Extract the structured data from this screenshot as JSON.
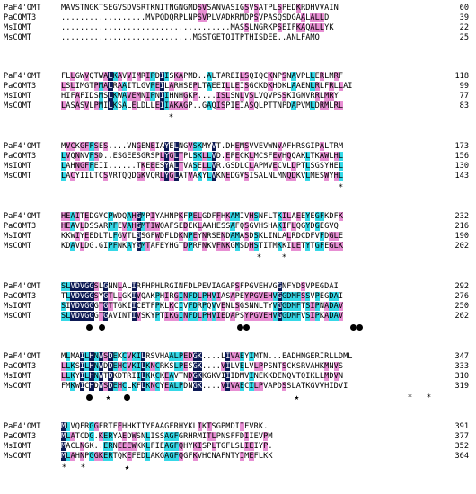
{
  "alignment": {
    "blocks": [
      {
        "rows": [
          {
            "name": "PaF4'OMT",
            "seq": "MAVSTNGKTSEGVSDVSRTKNITNGNGMDSVSANVASIGSVSATPLSPEDKRDHVVAIN",
            "end": "60"
          },
          {
            "name": "PaCOMT3",
            "seq": "..................MVPQDQRPLNPSVPLVADKRMDPSVPASQSDGAALALLD",
            "end": "39"
          },
          {
            "name": "MsIOMT",
            "seq": "....................................MASSLNGRKPSEIFKAQALLYK",
            "end": "22"
          },
          {
            "name": "MsCOMT",
            "seq": "............................MGSTGETQITPTHISDEE..ANLFAMQ",
            "end": "25"
          }
        ],
        "marks": []
      },
      {
        "rows": [
          {
            "name": "PaF4'OMT",
            "seq": "FLLGWVQTWALKAVVIMRIPDIISKAPMD..ALTAREILSQIQCKNPSNAVPLLERLMRF",
            "end": "118"
          },
          {
            "name": "PaCOMT3",
            "seq": "LSLIMGTPMALRAAITLGVPEILARHSEPLTAEEILLEISGCKDKHDKLAAENLRLFRLLAI",
            "end": "99"
          },
          {
            "name": "MsIOMT",
            "seq": "HIFAFIDSMSLKWAVEMNIPNIIHNHGKP....ISLSNLVSLVQVPSSKIGNVRRLMRY",
            "end": "77"
          },
          {
            "name": "MsCOMT",
            "seq": "LASASVLPMILKSALELDLLEIIAKAGP..GAQISPIEIASQLPTTNPDAPVMLDRMLRL",
            "end": "83"
          }
        ],
        "marks": [
          {
            "type": "star",
            "col": 17
          }
        ]
      },
      {
        "rows": [
          {
            "name": "PaF4'OMT",
            "seq": "MVCKGFFSES....VNGENEIAYELNGVSKMYVT.DHEMSVVEVWNVAFHRSGIPALTRM",
            "end": "173"
          },
          {
            "name": "PaCOMT3",
            "seq": "LVQNNVFSD..ESGEESGRSPLYGLTPLSKLLVD.EPECKLMCSFEVHQQAKLTKAWLHL",
            "end": "156"
          },
          {
            "name": "MsIOMT",
            "seq": "LAHNGFFEII......TKEEESYALTVASELLVR.GSDLCLAPMVECVLDPTLSGSYHEL",
            "end": "130"
          },
          {
            "name": "MsCOMT",
            "seq": "LACYIILTCSVRTQQDGKVQRLYGLATVAKYLVKNEDGVSISALNLMNQDKVLMESWYHL",
            "end": "143"
          }
        ],
        "marks": [
          {
            "type": "star",
            "col": 44
          }
        ]
      },
      {
        "rows": [
          {
            "name": "PaF4'OMT",
            "seq": "HEAITEDGVCPWDQAHGMPIYAHNPKFPELGDFFHKAMIVHSNFLTKILAEEYEGFKDFK",
            "end": "232"
          },
          {
            "name": "PaCOMT3",
            "seq": "HEAVLDSSARPFEVAHGMTIWQAFSEDEKLAAHESSAFQSGVHSHAKIFLQGYDGEGVQ",
            "end": "216"
          },
          {
            "name": "MsIOMT",
            "seq": "KKWIYEEDLTLFGVTLGSGFWDFLDKNPEYNRSENDAMASDSKLINLALRDCDFVFDGLE",
            "end": "190"
          },
          {
            "name": "MsCOMT",
            "seq": "KDAVLDG.GIPFNKAYGMTAFEYHGTDPRFNKVFNKGMSDHSTITMKKILETYTGFEGLK",
            "end": "202"
          }
        ],
        "marks": [
          {
            "type": "star",
            "col": 31
          },
          {
            "type": "star",
            "col": 35
          }
        ]
      },
      {
        "rows": [
          {
            "name": "PaF4'OMT",
            "seq": "SLVDVGGSLGNNLALIRFHPHLRGINFDLPEVIAGAPSFPGVEHVGGNFYDSVPEGDAI",
            "end": "292"
          },
          {
            "name": "PaCOMT3",
            "seq": "TLVDVGGSYGTLLGKIVQAKPHIRGINFDLPHVIASAPEYPGVEHVGGDMFSSVPEGDAI",
            "end": "276"
          },
          {
            "name": "MsIOMT",
            "seq": "SIVDVGGGTGTTGKIICETFPKLKCIVFDRPQVVENLSGSNNLTYVGGDMFTSIPNADAV",
            "end": "250"
          },
          {
            "name": "MsCOMT",
            "seq": "SLVDVGGGTGAVINTIVSKYPTIKGINFDLPHVIEDAPSYPGVEHVGGDMFVSIPKADAV",
            "end": "262"
          }
        ],
        "marks": [
          {
            "type": "dot",
            "col": 4
          },
          {
            "type": "dot",
            "col": 6
          },
          {
            "type": "dot",
            "col": 28
          },
          {
            "type": "dot",
            "col": 29
          },
          {
            "type": "dot",
            "col": 46
          },
          {
            "type": "dot",
            "col": 47
          }
        ]
      },
      {
        "rows": [
          {
            "name": "PaF4'OMT",
            "seq": "MLMAILHNWSDEKCVKILRSVHAALPEDGK....LIVAEYIMTN...EADHNGERIRLLDML",
            "end": "347"
          },
          {
            "name": "PaCOMT3",
            "seq": "LLKSILHNWDDEHCVKILKNCRKSLPESGK....VILVELVLPPSNTSCKSRVAHKMNVS",
            "end": "333"
          },
          {
            "name": "MsIOMT",
            "seq": "LLKYILHNWTDKDTRIILKKCKEAVTNDGKKGKVIIIDMVINEKKDENQVTQIKLLMDVN",
            "end": "310"
          },
          {
            "name": "MsCOMT",
            "seq": "FMKWICHDWSDEHCLKFLKNCYEALPDNGK....VIVAECILPVAPDSSLATKGVVHIDVI",
            "end": "319"
          }
        ],
        "marks": [
          {
            "type": "dot",
            "col": 4
          },
          {
            "type": "star",
            "col": 7
          },
          {
            "type": "dot",
            "col": 10
          },
          {
            "type": "star",
            "col": 37
          },
          {
            "type": "star",
            "col": 55
          },
          {
            "type": "star",
            "col": 58
          }
        ]
      },
      {
        "rows": [
          {
            "name": "PaF4'OMT",
            "seq": "MLVQFRGGERTFEHHKTIYEAAGFRHYKLIKTSGPMDIIEVRK.",
            "end": "391"
          },
          {
            "name": "PaCOMT3",
            "seq": "MLATCDG.KERYAEDWSNLISSAGFGRHRMITLPNSFFDIIEVPM",
            "end": "377"
          },
          {
            "name": "MsIOMT",
            "seq": "MACLNGK..ERNEEEWKKLFIEAGFQHYKISPLTGFLSLIEIYP.",
            "end": "352"
          },
          {
            "name": "MsCOMT",
            "seq": "MLAHNPGGKERTQKEFEDLAKGAGFQGFKVHCNAFNTYIMEFLKK",
            "end": "364"
          }
        ],
        "marks": [
          {
            "type": "star",
            "col": 0
          },
          {
            "type": "star",
            "col": 3
          },
          {
            "type": "star",
            "col": 10
          }
        ]
      }
    ]
  }
}
